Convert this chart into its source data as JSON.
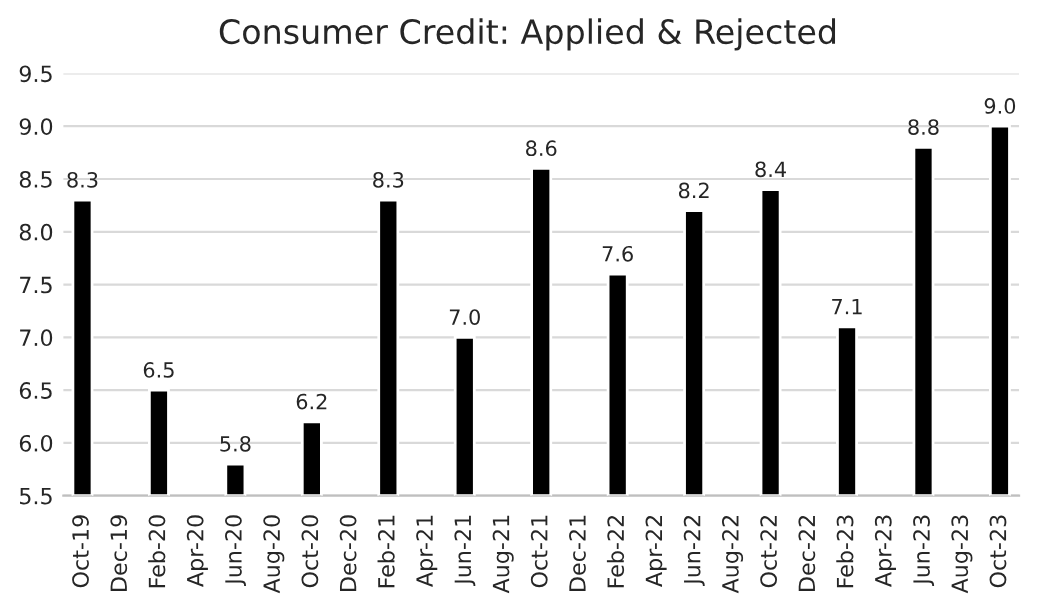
{
  "chart_data": {
    "type": "bar",
    "title": "Consumer Credit: Applied & Rejected",
    "categories": [
      "Oct-19",
      "Dec-19",
      "Feb-20",
      "Apr-20",
      "Jun-20",
      "Aug-20",
      "Oct-20",
      "Dec-20",
      "Feb-21",
      "Apr-21",
      "Jun-21",
      "Aug-21",
      "Oct-21",
      "Dec-21",
      "Feb-22",
      "Apr-22",
      "Jun-22",
      "Aug-22",
      "Oct-22",
      "Dec-22",
      "Feb-23",
      "Apr-23",
      "Jun-23",
      "Aug-23",
      "Oct-23"
    ],
    "values": [
      8.3,
      null,
      6.5,
      null,
      5.8,
      null,
      6.2,
      null,
      8.3,
      null,
      7.0,
      null,
      8.6,
      null,
      7.6,
      null,
      8.2,
      null,
      8.4,
      null,
      7.1,
      null,
      8.8,
      null,
      9.0
    ],
    "color": "#000000",
    "ylim": [
      5.5,
      9.5
    ],
    "yticks": [
      {
        "value": 5.5,
        "label": "5.5"
      },
      {
        "value": 6.0,
        "label": "6.0"
      },
      {
        "value": 6.5,
        "label": "6.5"
      },
      {
        "value": 7.0,
        "label": "7.0"
      },
      {
        "value": 7.5,
        "label": "7.5"
      },
      {
        "value": 8.0,
        "label": "8.0"
      },
      {
        "value": 8.5,
        "label": "8.5"
      },
      {
        "value": 9.0,
        "label": "9.0"
      },
      {
        "value": 9.5,
        "label": "9.5"
      }
    ],
    "value_labels": [
      "8.3",
      null,
      "6.5",
      null,
      "5.8",
      null,
      "6.2",
      null,
      "8.3",
      null,
      "7.0",
      null,
      "8.6",
      null,
      "7.6",
      null,
      "8.2",
      null,
      "8.4",
      null,
      "7.1",
      null,
      "8.8",
      null,
      "9.0"
    ],
    "grid": "y"
  }
}
